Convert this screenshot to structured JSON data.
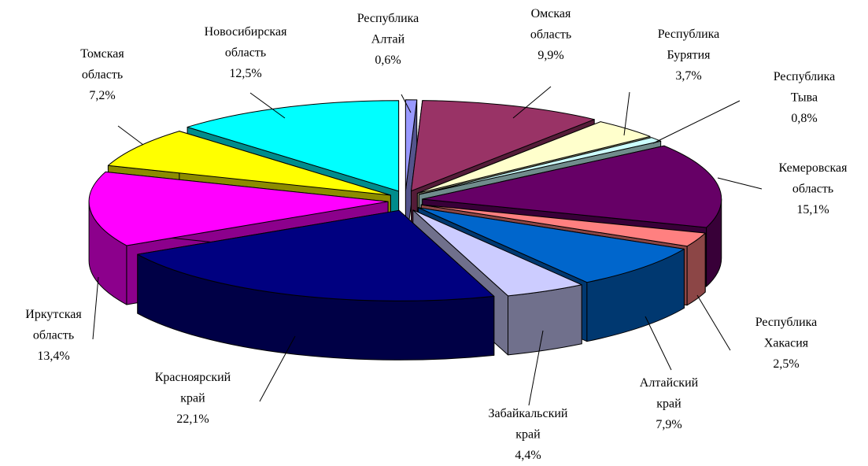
{
  "chart_data": {
    "type": "pie",
    "categories": [
      "Республика Алтай",
      "Омская область",
      "Республика Бурятия",
      "Республика Тыва",
      "Кемеровская область",
      "Республика Хакасия",
      "Алтайский край",
      "Забайкальский край",
      "Красноярский край",
      "Иркутская область",
      "Томская область",
      "Новосибирская область"
    ],
    "values": [
      0.6,
      9.9,
      3.7,
      0.8,
      15.1,
      2.5,
      7.9,
      4.4,
      22.1,
      13.4,
      7.2,
      12.5
    ],
    "value_labels": [
      "0,6%",
      "9,9%",
      "3,7%",
      "0,8%",
      "15,1%",
      "2,5%",
      "7,9%",
      "4,4%",
      "22,1%",
      "13,4%",
      "7,2%",
      "12,5%"
    ],
    "colors": [
      "#9999ff",
      "#993366",
      "#ffffcc",
      "#ccffff",
      "#660066",
      "#ff8080",
      "#0066cc",
      "#ccccff",
      "#000080",
      "#ff00ff",
      "#ffff00",
      "#00ffff"
    ]
  }
}
